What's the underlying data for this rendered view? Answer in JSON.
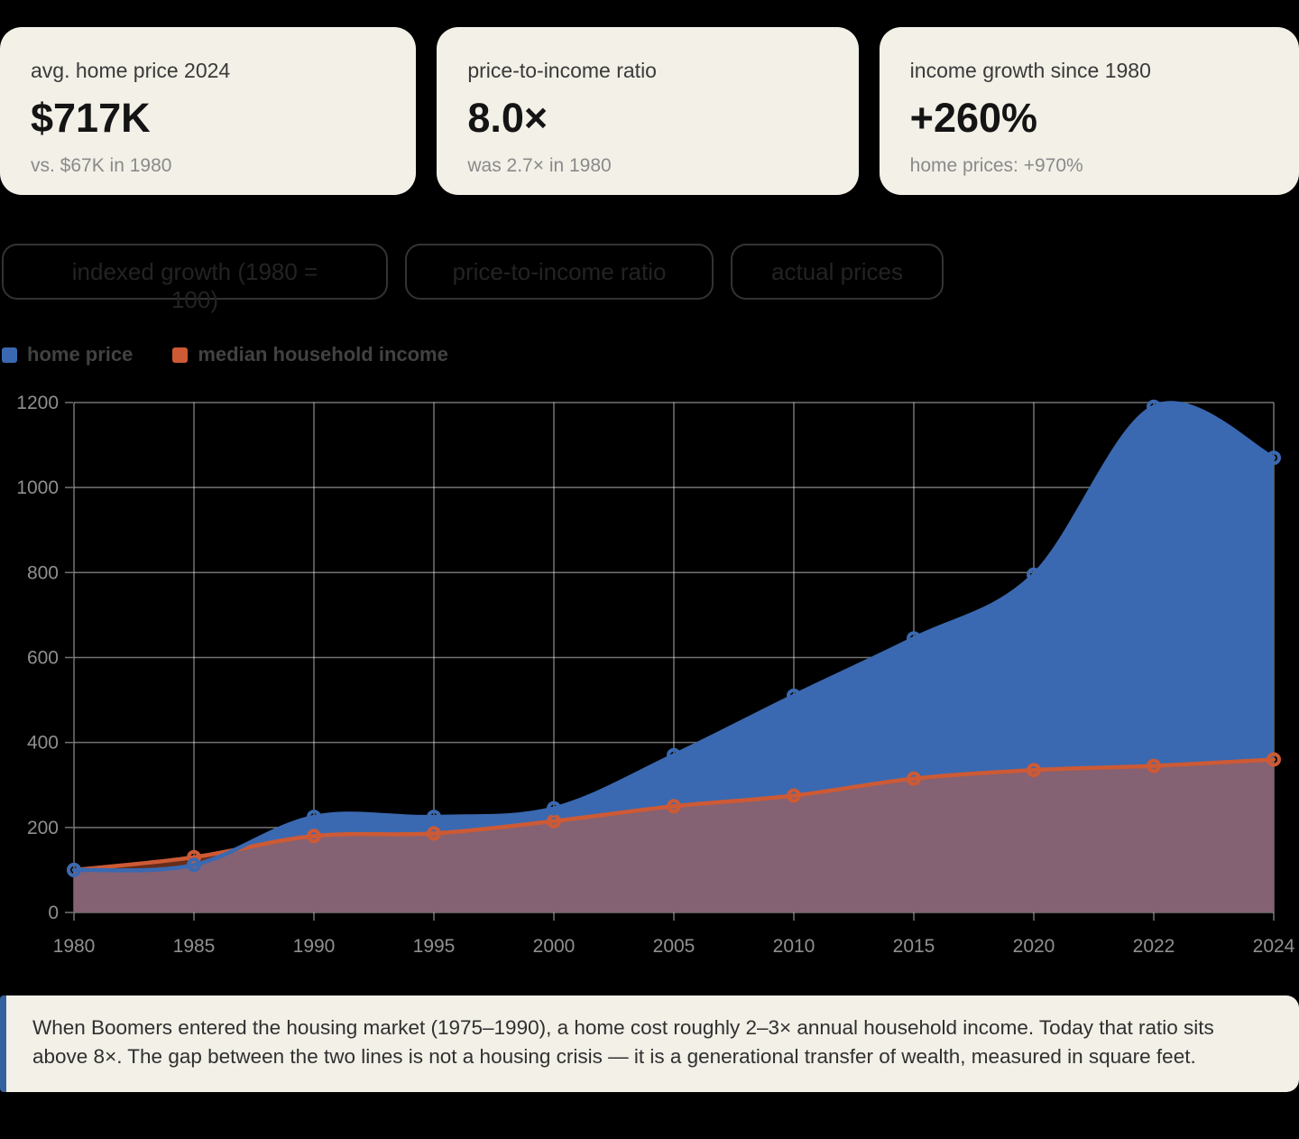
{
  "cards": [
    {
      "label": "avg. home price 2024",
      "value": "$717K",
      "sub": "vs. $67K in 1980"
    },
    {
      "label": "price-to-income ratio",
      "value": "8.0×",
      "sub": "was 2.7× in 1980"
    },
    {
      "label": "income growth since 1980",
      "value": "+260%",
      "sub": "home prices: +970%"
    }
  ],
  "tabs": [
    {
      "label": "indexed growth (1980 = 100)"
    },
    {
      "label": "price-to-income ratio"
    },
    {
      "label": "actual prices"
    }
  ],
  "legend": [
    {
      "label": "home price",
      "color": "#3a69b1"
    },
    {
      "label": "median household income",
      "color": "#cd5a35"
    }
  ],
  "chart_data": {
    "type": "area",
    "title": "",
    "x": [
      "1980",
      "1985",
      "1990",
      "1995",
      "2000",
      "2005",
      "2010",
      "2015",
      "2020",
      "2022",
      "2024"
    ],
    "series": [
      {
        "name": "home price",
        "color": "#3a69b1",
        "fill_opacity": 1.0,
        "values": [
          100,
          112,
          225,
          225,
          245,
          370,
          510,
          645,
          795,
          1190,
          1070
        ]
      },
      {
        "name": "median household income",
        "color": "#cd5a35",
        "fill_opacity": 0.5,
        "values": [
          100,
          130,
          180,
          186,
          215,
          250,
          275,
          315,
          335,
          345,
          360
        ]
      }
    ],
    "xlabel": "",
    "ylabel": "",
    "ylim": [
      0,
      1200
    ],
    "ytick_step": 200,
    "grid": true,
    "legend_position": "top-left",
    "grid_color": "rgba(255,255,255,0.45)",
    "tick_label_color": "#8f8f8f"
  },
  "caption": "When Boomers entered the housing market (1975–1990), a home cost roughly 2–3× annual household income. Today that ratio sits above 8×. The gap between the two lines is not a housing crisis — it is a generational transfer of wealth, measured in square feet."
}
